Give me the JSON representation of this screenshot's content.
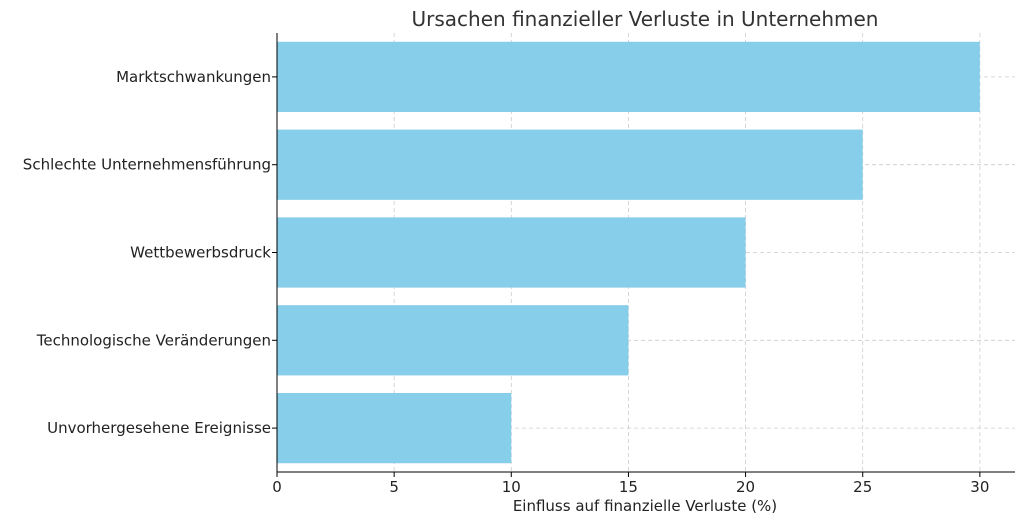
{
  "chart_data": {
    "type": "bar",
    "orientation": "horizontal",
    "title": "Ursachen finanzieller Verluste in Unternehmen",
    "xlabel": "Einfluss auf finanzielle Verluste (%)",
    "ylabel": "",
    "categories": [
      "Marktschwankungen",
      "Schlechte Unternehmensführung",
      "Wettbewerbsdruck",
      "Technologische Veränderungen",
      "Unvorhergesehene Ereignisse"
    ],
    "values": [
      30,
      25,
      20,
      15,
      10
    ],
    "xlim": [
      0,
      31.5
    ],
    "xticks": [
      0,
      5,
      10,
      15,
      20,
      25,
      30
    ],
    "grid": true,
    "bar_color": "#87CEEB"
  }
}
